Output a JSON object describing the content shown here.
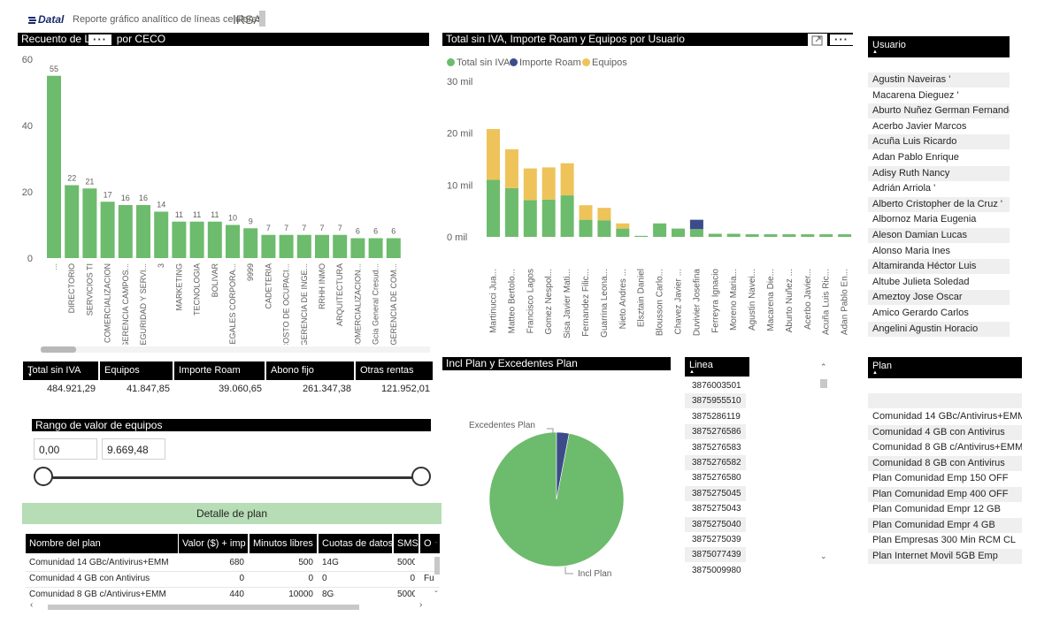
{
  "header": {
    "logo_text": "Datal",
    "title": "Reporte gráfico analítico de líneas celulares",
    "company": "IRSA"
  },
  "ceco_chart": {
    "title_left": "Recuento de Li",
    "title_right": "por CECO",
    "chart_data": {
      "type": "bar",
      "title": "Recuento de Li… por CECO",
      "categories": [
        "...",
        "DIRECTORIO",
        "SERVICIOS TI",
        "COMERCIALIZACION",
        "GERENCIA CAMPOS...",
        "SEGURIDAD Y SERVI...",
        "3",
        "MARKETING",
        "TECNOLOGIA",
        "BOLIVAR",
        "LEGALES CORPORA...",
        "9999",
        "CADETERIA",
        "COSTO DE OCUPACI...",
        "GERENCIA DE INGE...",
        "RRHH INMO",
        "ARQUITECTURA",
        "COMERCIALIZACION...",
        "Gcia General Cresud...",
        "GERENCIA DE COM..."
      ],
      "values": [
        55,
        22,
        21,
        17,
        16,
        16,
        14,
        11,
        11,
        11,
        10,
        9,
        7,
        7,
        7,
        7,
        7,
        6,
        6,
        6
      ],
      "ylim": [
        0,
        60
      ],
      "yticks": [
        "0",
        "20",
        "40",
        "60"
      ],
      "color": "#6dbb6d"
    }
  },
  "usuario_chart": {
    "title": "Total sin IVA, Importe Roam y Equipos por Usuario",
    "legend": [
      {
        "label": "Total sin IVA",
        "color": "#6dbb6d"
      },
      {
        "label": "Importe Roam",
        "color": "#3c4c8a"
      },
      {
        "label": "Equipos",
        "color": "#eec35a"
      }
    ],
    "chart_data": {
      "type": "bar",
      "stacked": true,
      "categories": [
        "Martinucci Jua...",
        "Matteo Bertolo...",
        "Francisco Lagos",
        "Gomez Nespol...",
        "Sisa Javier Mati...",
        "Fernandez Filic...",
        "Guarrina Leona...",
        "Nieto Andres ...",
        "Elsztain Daniel",
        "Blousson Carlo...",
        "Chavez Javier ...",
        "Duvivier Josefina",
        "Ferreyra Ignacio",
        "Moreno Maria...",
        "Agustin Navei...",
        "Macarena Die...",
        "Aburto Nuñez ...",
        "Acerbo Javier...",
        "Acuña Luis Ric...",
        "Adan Pablo En..."
      ],
      "series": [
        {
          "name": "Total sin IVA",
          "values": [
            11000,
            9400,
            7100,
            7200,
            8000,
            3300,
            3200,
            1600,
            200,
            2600,
            1600,
            1500,
            600,
            600,
            500,
            500,
            500,
            500,
            500,
            500
          ]
        },
        {
          "name": "Importe Roam",
          "values": [
            0,
            0,
            0,
            0,
            0,
            0,
            0,
            0,
            0,
            0,
            0,
            1800,
            0,
            0,
            0,
            0,
            0,
            0,
            0,
            0
          ]
        },
        {
          "name": "Equipos",
          "values": [
            9800,
            7500,
            6100,
            6200,
            6200,
            2800,
            2400,
            1000,
            0,
            0,
            0,
            0,
            0,
            0,
            0,
            0,
            0,
            0,
            0,
            0
          ]
        }
      ],
      "ylim": [
        0,
        30000
      ],
      "yticks": [
        "0 mil",
        "10 mil",
        "20 mil",
        "30 mil"
      ]
    }
  },
  "usuario_slicer": {
    "header": "Usuario",
    "items": [
      "Agustin Naveiras '",
      "Macarena Dieguez '",
      "Aburto Nuñez German Fernando",
      "Acerbo Javier Marcos",
      "Acuña Luis Ricardo",
      "Adan Pablo Enrique",
      "Adisy Ruth Nancy",
      "Adrián Arriola '",
      "Alberto Cristopher de la Cruz '",
      "Albornoz Maria Eugenia",
      "Aleson Damian Lucas",
      "Alonso Maria Ines",
      "Altamiranda Héctor Luis",
      "Altube Julieta Soledad",
      "Ameztoy Jose Oscar",
      "Amico Gerardo Carlos",
      "Angelini Agustin Horacio"
    ]
  },
  "kpis": [
    {
      "label": "Total sin IVA",
      "value": "484.921,29"
    },
    {
      "label": "Equipos",
      "value": "41.847,85"
    },
    {
      "label": "Importe Roam",
      "value": "39.060,65"
    },
    {
      "label": "Abono fijo",
      "value": "261.347,38"
    },
    {
      "label": "Otras rentas",
      "value": "121.952,01"
    }
  ],
  "rango": {
    "title": "Rango de valor de equipos",
    "min": "0,00",
    "max": "9.669,48"
  },
  "detalle": {
    "button_label": "Detalle de plan",
    "columns": [
      "Nombre del plan",
      "Valor ($) + imp",
      "Minutos libres",
      "Cuotas de datos",
      "SMS",
      "O"
    ],
    "rows": [
      [
        "Comunidad 14 GBc/Antivirus+EMM",
        "680",
        "500",
        "14G",
        "5000",
        ""
      ],
      [
        "Comunidad 4 GB con Antivirus",
        "0",
        "0",
        "0",
        "0",
        "Fu"
      ],
      [
        "Comunidad 8 GB c/Antivirus+EMM",
        "440",
        "10000",
        "8G",
        "5000",
        ""
      ]
    ]
  },
  "pie": {
    "title": "Incl Plan y Excedentes Plan",
    "chart_data": {
      "type": "pie",
      "labels": [
        "Incl Plan",
        "Excedentes Plan"
      ],
      "values": [
        97,
        3
      ],
      "colors": [
        "#6dbb6d",
        "#3c4c8a"
      ]
    }
  },
  "linea": {
    "header": "Linea",
    "items": [
      "3876003501",
      "3875955510",
      "3875286119",
      "3875276586",
      "3875276583",
      "3875276582",
      "3875276580",
      "3875275045",
      "3875275043",
      "3875275040",
      "3875275039",
      "3875077439",
      "3875009980"
    ]
  },
  "plan_slicer": {
    "header": "Plan",
    "items": [
      "Comunidad 14 GBc/Antivirus+EMM",
      "Comunidad 4 GB con Antivirus",
      "Comunidad 8 GB c/Antivirus+EMM",
      "Comunidad 8 GB con Antivirus",
      "Plan Comunidad Emp 150 OFF",
      "Plan Comunidad Emp 400 OFF",
      "Plan Comunidad Empr 12 GB",
      "Plan Comunidad Empr 4 GB",
      "Plan Empresas 300 Min RCM CL",
      "Plan Internet Movil 5GB Emp"
    ]
  }
}
